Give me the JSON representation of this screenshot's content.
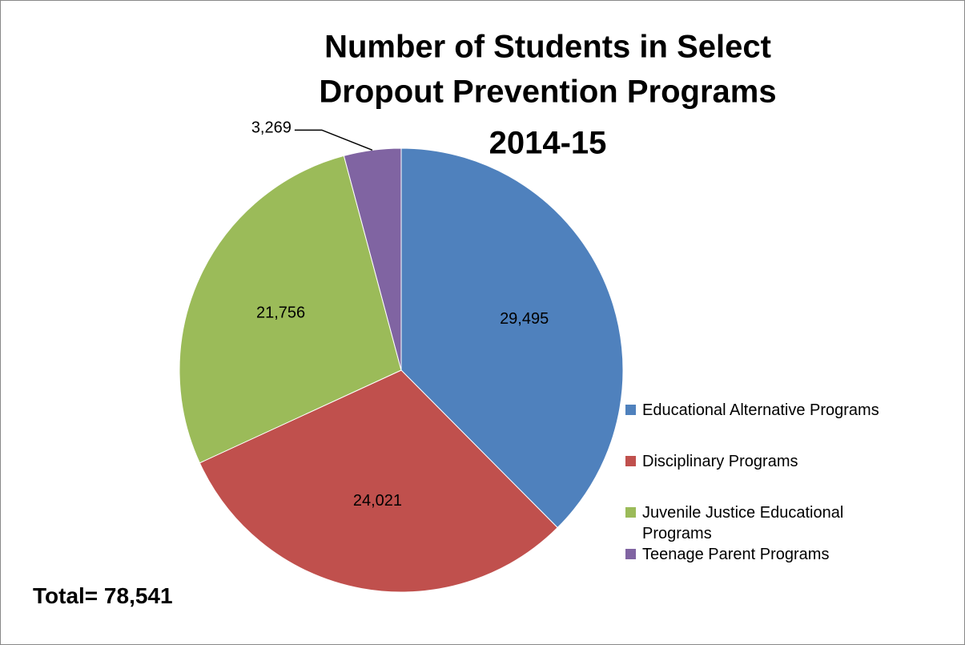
{
  "chart_data": {
    "type": "pie",
    "title": [
      "Number of Students in Select",
      "Dropout Prevention Programs",
      "2014-15"
    ],
    "categories": [
      "Educational Alternative Programs",
      "Disciplinary Programs",
      "Juvenile Justice Educational Programs",
      "Teenage Parent Programs"
    ],
    "values": [
      29495,
      24021,
      21756,
      3269
    ],
    "value_labels": [
      "29,495",
      "24,021",
      "21,756",
      "3,269"
    ],
    "colors": [
      "#4f81bd",
      "#c0504d",
      "#9bbb59",
      "#8064a2"
    ],
    "annotation": "Total= 78,541",
    "legend": "right"
  }
}
